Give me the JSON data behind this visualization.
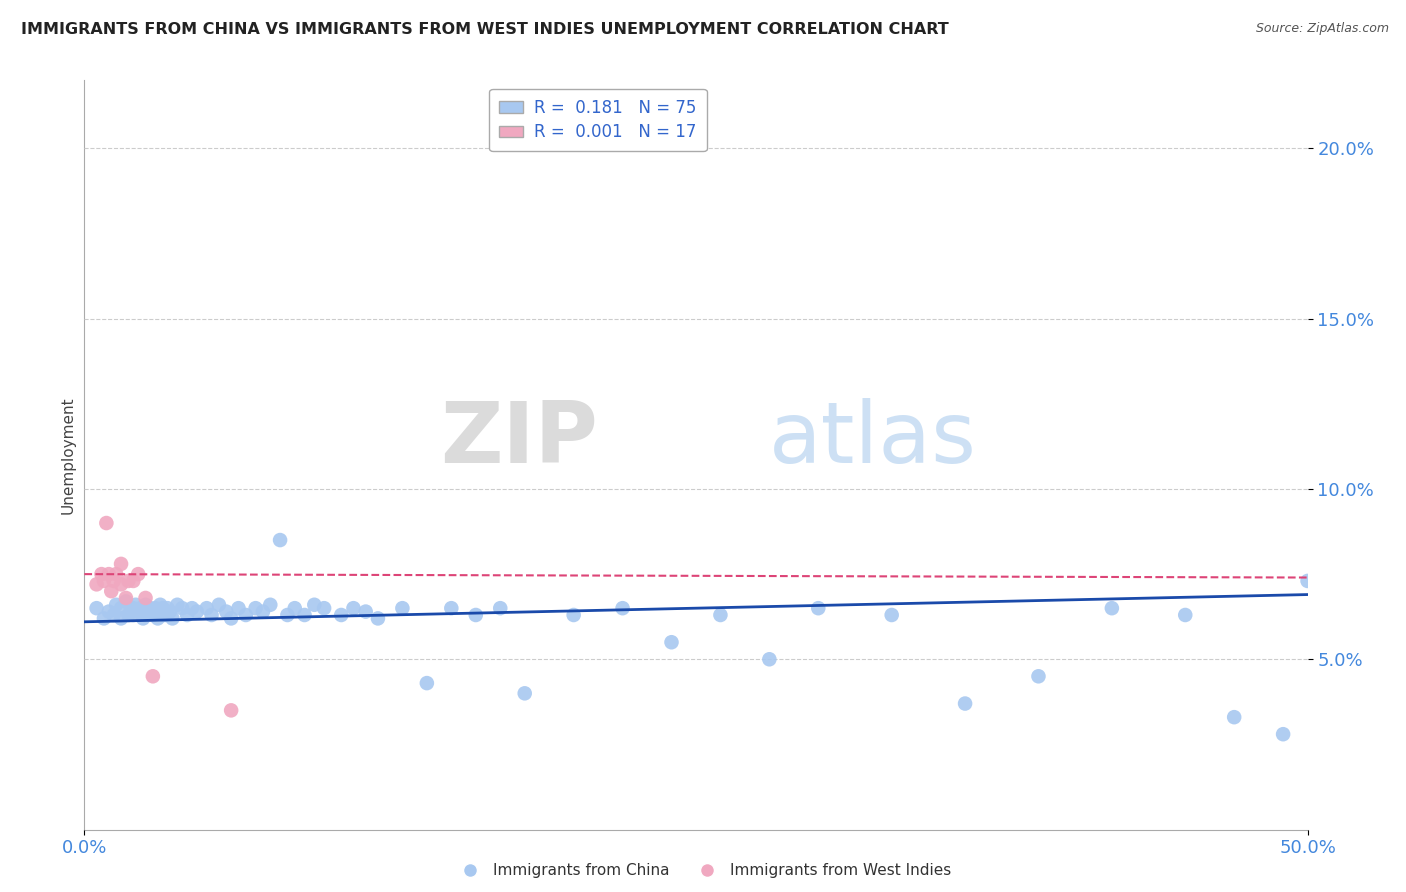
{
  "title": "IMMIGRANTS FROM CHINA VS IMMIGRANTS FROM WEST INDIES UNEMPLOYMENT CORRELATION CHART",
  "source": "Source: ZipAtlas.com",
  "ylabel": "Unemployment",
  "yticks": [
    0.05,
    0.1,
    0.15,
    0.2
  ],
  "ytick_labels": [
    "5.0%",
    "10.0%",
    "15.0%",
    "20.0%"
  ],
  "xtick_labels": [
    "0.0%",
    "50.0%"
  ],
  "xlim": [
    0.0,
    0.5
  ],
  "ylim": [
    0.0,
    0.22
  ],
  "series1_color": "#a8c8f0",
  "series2_color": "#f0a8c0",
  "trendline1_color": "#1a4aaa",
  "trendline2_color": "#dd4477",
  "grid_color": "#cccccc",
  "watermark_zip": "ZIP",
  "watermark_atlas": "atlas",
  "title_color": "#222222",
  "axis_label_color": "#4488dd",
  "legend_label1": "R =  0.181   N = 75",
  "legend_label2": "R =  0.001   N = 17",
  "legend_color": "#3366cc",
  "bottom_label1": "Immigrants from China",
  "bottom_label2": "Immigrants from West Indies",
  "china_x": [
    0.005,
    0.008,
    0.01,
    0.012,
    0.013,
    0.015,
    0.015,
    0.017,
    0.018,
    0.019,
    0.02,
    0.02,
    0.021,
    0.022,
    0.023,
    0.024,
    0.025,
    0.025,
    0.026,
    0.027,
    0.028,
    0.029,
    0.03,
    0.03,
    0.031,
    0.032,
    0.033,
    0.034,
    0.035,
    0.036,
    0.038,
    0.04,
    0.042,
    0.044,
    0.046,
    0.05,
    0.052,
    0.055,
    0.058,
    0.06,
    0.063,
    0.066,
    0.07,
    0.073,
    0.076,
    0.08,
    0.083,
    0.086,
    0.09,
    0.094,
    0.098,
    0.105,
    0.11,
    0.115,
    0.12,
    0.13,
    0.14,
    0.15,
    0.16,
    0.17,
    0.18,
    0.2,
    0.22,
    0.24,
    0.26,
    0.28,
    0.3,
    0.33,
    0.36,
    0.39,
    0.42,
    0.45,
    0.47,
    0.49,
    0.5
  ],
  "china_y": [
    0.065,
    0.062,
    0.064,
    0.063,
    0.066,
    0.065,
    0.062,
    0.067,
    0.063,
    0.065,
    0.065,
    0.063,
    0.066,
    0.064,
    0.065,
    0.062,
    0.063,
    0.066,
    0.064,
    0.065,
    0.063,
    0.065,
    0.064,
    0.062,
    0.066,
    0.065,
    0.063,
    0.065,
    0.064,
    0.062,
    0.066,
    0.065,
    0.063,
    0.065,
    0.064,
    0.065,
    0.063,
    0.066,
    0.064,
    0.062,
    0.065,
    0.063,
    0.065,
    0.064,
    0.066,
    0.085,
    0.063,
    0.065,
    0.063,
    0.066,
    0.065,
    0.063,
    0.065,
    0.064,
    0.062,
    0.065,
    0.043,
    0.065,
    0.063,
    0.065,
    0.04,
    0.063,
    0.065,
    0.055,
    0.063,
    0.05,
    0.065,
    0.063,
    0.037,
    0.045,
    0.065,
    0.063,
    0.033,
    0.028,
    0.073
  ],
  "wi_x": [
    0.005,
    0.007,
    0.008,
    0.009,
    0.01,
    0.011,
    0.012,
    0.013,
    0.015,
    0.015,
    0.017,
    0.018,
    0.02,
    0.022,
    0.025,
    0.028,
    0.06
  ],
  "wi_y": [
    0.072,
    0.075,
    0.073,
    0.09,
    0.075,
    0.07,
    0.073,
    0.075,
    0.078,
    0.072,
    0.068,
    0.073,
    0.073,
    0.075,
    0.068,
    0.045,
    0.035
  ]
}
